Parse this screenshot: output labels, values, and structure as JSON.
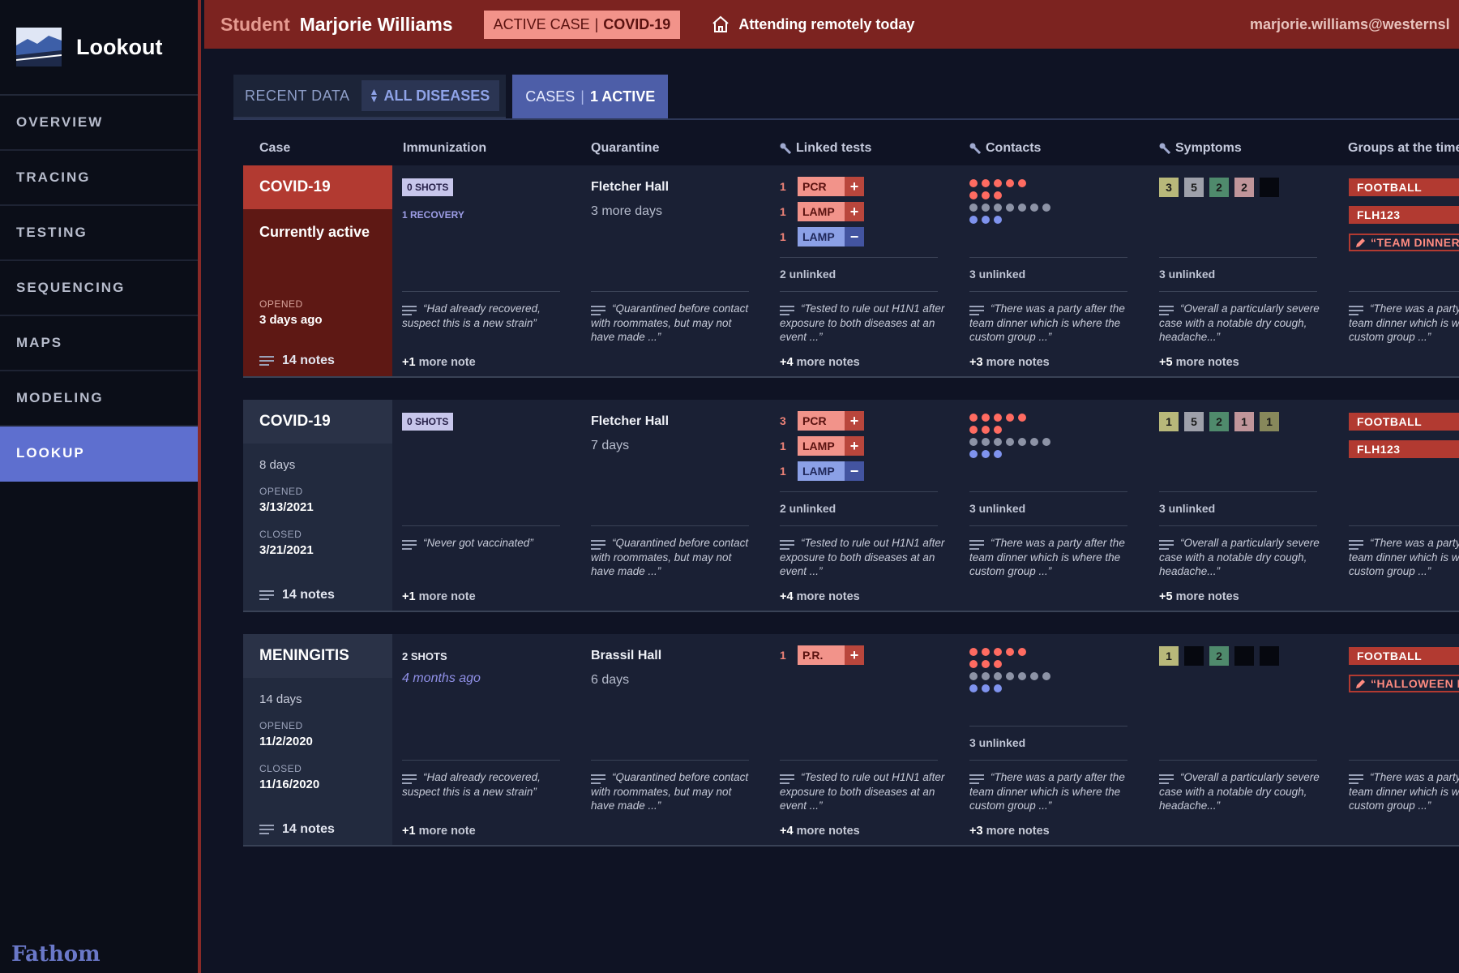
{
  "app": {
    "name": "Lookout",
    "footer_brand": "Fathom",
    "accent": "#5e6fcf",
    "alert_color": "#b23a31"
  },
  "nav": [
    {
      "label": "OVERVIEW",
      "active": false
    },
    {
      "label": "TRACING",
      "active": false
    },
    {
      "label": "TESTING",
      "active": false
    },
    {
      "label": "SEQUENCING",
      "active": false
    },
    {
      "label": "MAPS",
      "active": false
    },
    {
      "label": "MODELING",
      "active": false
    },
    {
      "label": "LOOKUP",
      "active": true
    }
  ],
  "topbar": {
    "role": "Student",
    "name": "Marjorie Williams",
    "case_prefix": "ACTIVE CASE",
    "case_disease": "COVID-19",
    "remote_icon": "home-icon",
    "remote_text": "Attending remotely today",
    "email": "marjorie.williams@westernsl"
  },
  "tabs": {
    "recent_label": "RECENT DATA",
    "filter_label": "ALL DISEASES",
    "cases_label": "CASES",
    "cases_count": "1 ACTIVE"
  },
  "columns": [
    "Case",
    "Immunization",
    "Quarantine",
    "Linked tests",
    "Contacts",
    "Symptoms",
    "Groups at the time"
  ],
  "cases": [
    {
      "disease": "COVID-19",
      "status": "Currently active",
      "active": true,
      "opened_label": "OPENED",
      "opened": "3 days ago",
      "notes": "14 notes",
      "immunization": {
        "shots": "0 SHOTS",
        "sub": "1 RECOVERY",
        "note": "“Had already recovered, suspect this is a new strain”",
        "more_count": "+1",
        "more_text": "more note"
      },
      "quarantine": {
        "place": "Fletcher Hall",
        "sub": "3 more days",
        "note": "“Quarantined before contact with roommates, but may not have made ...”"
      },
      "tests": {
        "items": [
          {
            "count": "1",
            "name": "PCR",
            "result": "+"
          },
          {
            "count": "1",
            "name": "LAMP",
            "result": "+"
          },
          {
            "count": "1",
            "name": "LAMP",
            "result": "−"
          }
        ],
        "unlinked": "2 unlinked",
        "note": "“Tested to rule out H1N1 after exposure to both diseases at an event ...”",
        "more_count": "+4",
        "more_text": "more notes"
      },
      "contacts": {
        "rows": [
          [
            "r",
            "r",
            "r",
            "r",
            "r"
          ],
          [
            "r",
            "r",
            "r"
          ],
          [
            "g",
            "g",
            "g",
            "g",
            "g",
            "g",
            "g"
          ],
          [
            "b",
            "b",
            "b"
          ]
        ],
        "unlinked": "3 unlinked",
        "note": "“There was a party after the team dinner which is where the custom group ...”",
        "more_count": "+3",
        "more_text": "more notes"
      },
      "symptoms": {
        "squares": [
          {
            "v": "3",
            "c": "c1"
          },
          {
            "v": "5",
            "c": "c2"
          },
          {
            "v": "2",
            "c": "c3"
          },
          {
            "v": "2",
            "c": "c4"
          },
          {
            "v": "",
            "c": "k"
          }
        ],
        "unlinked": "3 unlinked",
        "note": "“Overall a particularly severe case with a notable dry cough, headache...”",
        "more_count": "+5",
        "more_text": "more notes"
      },
      "groups": {
        "tags": [
          {
            "label": "FOOTBALL",
            "quote": false
          },
          {
            "label": "FLH123",
            "quote": false
          },
          {
            "label": "“TEAM DINNER",
            "quote": true
          }
        ],
        "note": "“There was a party after the team dinner which is where the custom group ...”"
      }
    },
    {
      "disease": "COVID-19",
      "duration": "8 days",
      "active": false,
      "opened_label": "OPENED",
      "opened": "3/13/2021",
      "closed_label": "CLOSED",
      "closed": "3/21/2021",
      "notes": "14 notes",
      "immunization": {
        "shots": "0 SHOTS",
        "note": "“Never got vaccinated”",
        "more_count": "+1",
        "more_text": "more note"
      },
      "quarantine": {
        "place": "Fletcher Hall",
        "sub": "7 days",
        "note": "“Quarantined before contact with roommates, but may not have made ...”"
      },
      "tests": {
        "items": [
          {
            "count": "3",
            "name": "PCR",
            "result": "+"
          },
          {
            "count": "1",
            "name": "LAMP",
            "result": "+"
          },
          {
            "count": "1",
            "name": "LAMP",
            "result": "−"
          }
        ],
        "unlinked": "2 unlinked",
        "note": "“Tested to rule out H1N1 after exposure to both diseases at an event ...”",
        "more_count": "+4",
        "more_text": "more notes"
      },
      "contacts": {
        "rows": [
          [
            "r",
            "r",
            "r",
            "r",
            "r"
          ],
          [
            "r",
            "r",
            "r"
          ],
          [
            "g",
            "g",
            "g",
            "g",
            "g",
            "g",
            "g"
          ],
          [
            "b",
            "b",
            "b"
          ]
        ],
        "unlinked": "3 unlinked",
        "note": "“There was a party after the team dinner which is where the custom group ...”",
        "more_count": "+3",
        "more_text": "more notes"
      },
      "symptoms": {
        "squares": [
          {
            "v": "1",
            "c": "c1"
          },
          {
            "v": "5",
            "c": "c2"
          },
          {
            "v": "2",
            "c": "c3"
          },
          {
            "v": "1",
            "c": "c4"
          },
          {
            "v": "1",
            "c": "c5"
          }
        ],
        "unlinked": "3 unlinked",
        "note": "“Overall a particularly severe case with a notable dry cough, headache...”",
        "more_count": "+5",
        "more_text": "more notes"
      },
      "groups": {
        "tags": [
          {
            "label": "FOOTBALL",
            "quote": false
          },
          {
            "label": "FLH123",
            "quote": false
          }
        ],
        "note": "“There was a party after the team dinner which is where the custom group ...”"
      }
    },
    {
      "disease": "MENINGITIS",
      "duration": "14 days",
      "active": false,
      "opened_label": "OPENED",
      "opened": "11/2/2020",
      "closed_label": "CLOSED",
      "closed": "11/16/2020",
      "notes": "14 notes",
      "immunization": {
        "shots": "2 SHOTS",
        "ago": "4 months ago",
        "note": "“Had already recovered, suspect this is a new strain”",
        "more_count": "+1",
        "more_text": "more note"
      },
      "quarantine": {
        "place": "Brassil Hall",
        "sub": "6 days",
        "note": "“Quarantined before contact with roommates, but may not have made ...”"
      },
      "tests": {
        "items": [
          {
            "count": "1",
            "name": "P.R.",
            "result": "+"
          }
        ],
        "unlinked": "",
        "note": "“Tested to rule out H1N1 after exposure to both diseases at an event ...”",
        "more_count": "+4",
        "more_text": "more notes"
      },
      "contacts": {
        "rows": [
          [
            "r",
            "r",
            "r",
            "r",
            "r"
          ],
          [
            "r",
            "r",
            "r"
          ],
          [
            "g",
            "g",
            "g",
            "g",
            "g",
            "g",
            "g"
          ],
          [
            "b",
            "b",
            "b"
          ]
        ],
        "unlinked": "3 unlinked",
        "note": "“There was a party after the team dinner which is where the custom group ...”",
        "more_count": "+3",
        "more_text": "more notes"
      },
      "symptoms": {
        "squares": [
          {
            "v": "1",
            "c": "c1"
          },
          {
            "v": "",
            "c": "k"
          },
          {
            "v": "2",
            "c": "c3"
          },
          {
            "v": "",
            "c": "k"
          },
          {
            "v": "",
            "c": "k"
          }
        ],
        "unlinked": "",
        "note": "“Overall a particularly severe case with a notable dry cough, headache...”",
        "more_count": "",
        "more_text": ""
      },
      "groups": {
        "tags": [
          {
            "label": "FOOTBALL",
            "quote": false
          },
          {
            "label": "“HALLOWEEN P",
            "quote": true
          }
        ],
        "note": "“There was a party after the team dinner which is where the custom group ...”"
      }
    }
  ]
}
